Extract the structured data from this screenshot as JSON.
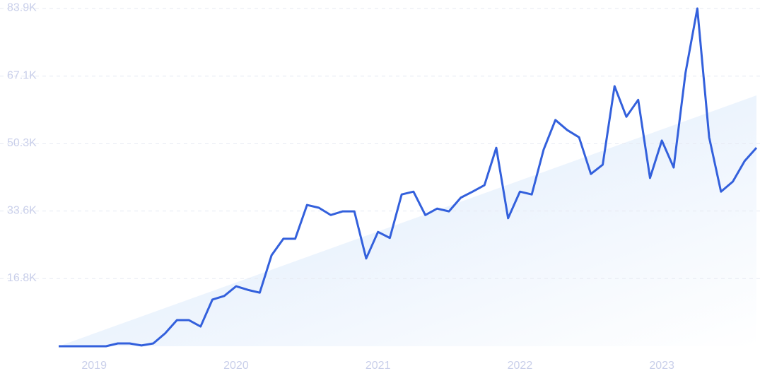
{
  "chart_data": {
    "type": "line",
    "categories": [
      null,
      null,
      null,
      "2019",
      null,
      null,
      null,
      null,
      null,
      null,
      null,
      null,
      null,
      null,
      null,
      "2020",
      null,
      null,
      null,
      null,
      null,
      null,
      null,
      null,
      null,
      null,
      null,
      "2021",
      null,
      null,
      null,
      null,
      null,
      null,
      null,
      null,
      null,
      null,
      null,
      "2022",
      null,
      null,
      null,
      null,
      null,
      null,
      null,
      null,
      null,
      null,
      null,
      "2023",
      null,
      null,
      null,
      null,
      null,
      null,
      null,
      null
    ],
    "series": [
      {
        "color": "#3360dc",
        "values": [
          0,
          0,
          0,
          0,
          0,
          700,
          700,
          200,
          700,
          3200,
          6500,
          6500,
          4900,
          11600,
          12500,
          14900,
          14000,
          13300,
          22600,
          26700,
          26700,
          35100,
          34400,
          32600,
          33500,
          33500,
          21800,
          28400,
          26900,
          37700,
          38400,
          32600,
          34200,
          33500,
          36900,
          38400,
          40000,
          49300,
          31800,
          38400,
          37700,
          48800,
          56200,
          53700,
          51900,
          42800,
          45100,
          64600,
          57000,
          61200,
          41800,
          51100,
          44400,
          67900,
          83900,
          51900,
          38400,
          40900,
          46000,
          49300
        ]
      }
    ],
    "trend": {
      "values": [
        0,
        62300
      ]
    },
    "ylim": [
      0,
      83900
    ],
    "yticks": [
      {
        "value": 16800,
        "label": "16.8K"
      },
      {
        "value": 33600,
        "label": "33.6K"
      },
      {
        "value": 50300,
        "label": "50.3K"
      },
      {
        "value": 67100,
        "label": "67.1K"
      },
      {
        "value": 83900,
        "label": "83.9K"
      }
    ],
    "grid": true
  }
}
